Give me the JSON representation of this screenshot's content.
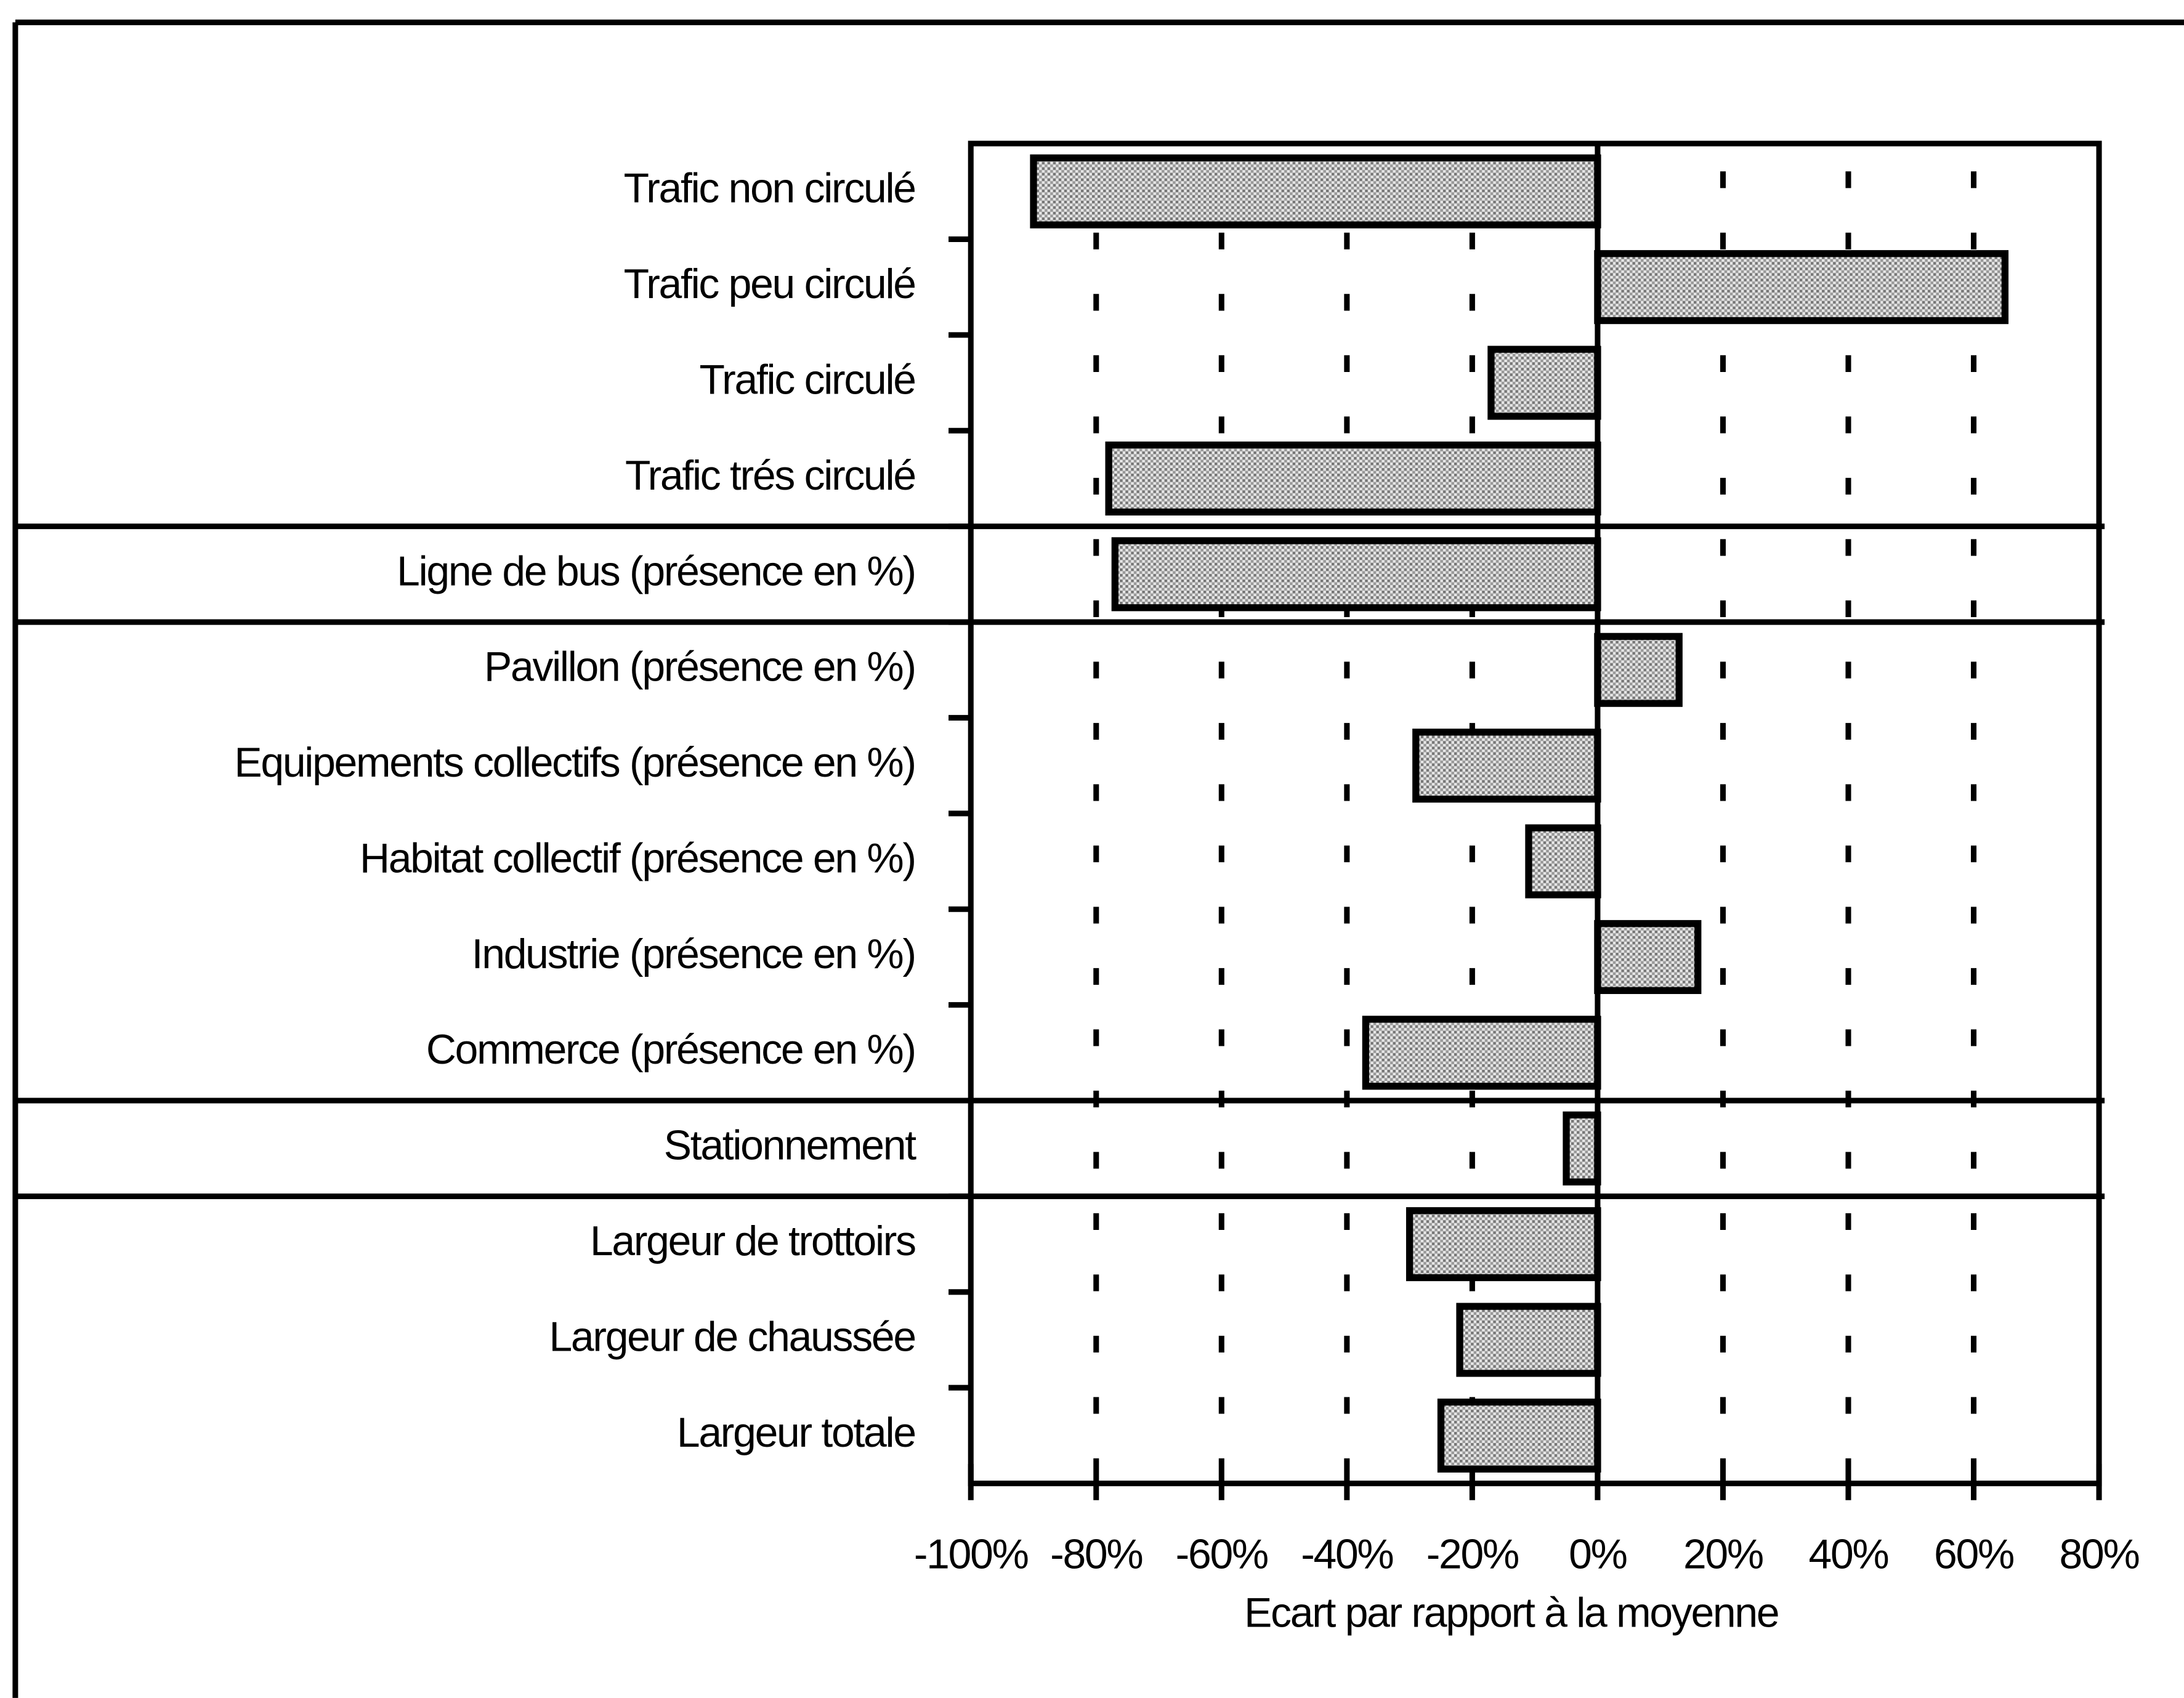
{
  "chart_data": {
    "type": "barh",
    "categories": [
      "Trafic non circulé",
      "Trafic peu circulé",
      "Trafic circulé",
      "Trafic trés circulé",
      "Ligne de bus (présence en %)",
      "Pavillon (présence en %)",
      "Equipements collectifs (présence en %)",
      "Habitat collectif (présence en %)",
      "Industrie (présence en %)",
      "Commerce (présence en %)",
      "Stationnement",
      "Largeur de trottoirs",
      "Largeur de chaussée",
      "Largeur totale"
    ],
    "values": [
      -90,
      65,
      -17,
      -78,
      -77,
      13,
      -29,
      -11,
      16,
      -37,
      -5,
      -30,
      -22,
      -25
    ],
    "color": "#c8c8c8",
    "xlabel": "Ecart par rapport à la moyenne",
    "xlim": [
      -100,
      80
    ],
    "xticks": [
      {
        "value": -100,
        "label": "-100%"
      },
      {
        "value": -80,
        "label": "-80%"
      },
      {
        "value": -60,
        "label": "-60%"
      },
      {
        "value": -40,
        "label": "-40%"
      },
      {
        "value": -20,
        "label": "-20%"
      },
      {
        "value": 0,
        "label": "0%"
      },
      {
        "value": 20,
        "label": "20%"
      },
      {
        "value": 40,
        "label": "40%"
      },
      {
        "value": 60,
        "label": "60%"
      },
      {
        "value": 80,
        "label": "80%"
      }
    ],
    "grid": true
  }
}
